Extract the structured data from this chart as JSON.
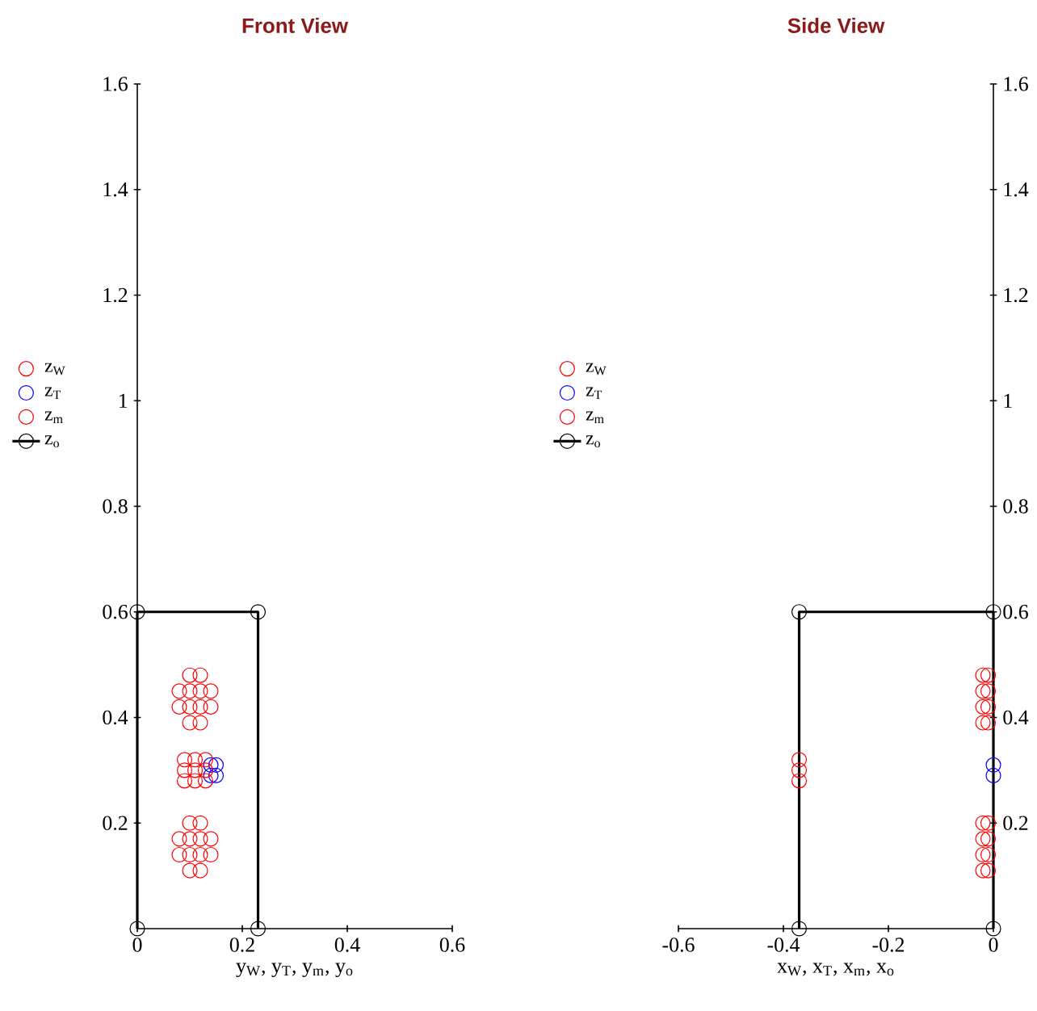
{
  "chart_data": [
    {
      "type": "scatter",
      "title": "Front View",
      "xlabel": "y$_{W}$, y$_{T}$, y$_{m}$, y$_{o}$",
      "xlim": [
        0,
        0.6
      ],
      "ylim": [
        0,
        1.6
      ],
      "xticks": [
        0,
        0.2,
        0.4,
        0.6
      ],
      "yticks": [
        0.2,
        0.4,
        0.6,
        0.8,
        1,
        1.2,
        1.4,
        1.6
      ],
      "legend": "left",
      "marker": "circle",
      "series": [
        {
          "name": "z$_{W}$",
          "color": "#ff0000",
          "x": [
            0.1,
            0.12,
            0.08,
            0.1,
            0.12,
            0.14,
            0.08,
            0.1,
            0.12,
            0.14,
            0.1,
            0.12,
            0.1,
            0.12,
            0.08,
            0.1,
            0.12,
            0.14,
            0.08,
            0.1,
            0.12,
            0.14,
            0.1,
            0.12
          ],
          "values": [
            0.39,
            0.39,
            0.42,
            0.42,
            0.42,
            0.42,
            0.45,
            0.45,
            0.45,
            0.45,
            0.48,
            0.48,
            0.11,
            0.11,
            0.14,
            0.14,
            0.14,
            0.14,
            0.17,
            0.17,
            0.17,
            0.17,
            0.2,
            0.2
          ]
        },
        {
          "name": "z$_{T}$",
          "color": "#0000ff",
          "x": [
            0.14,
            0.15,
            0.14,
            0.15
          ],
          "values": [
            0.29,
            0.29,
            0.31,
            0.31
          ]
        },
        {
          "name": "z$_{m}$",
          "color": "#ff0000",
          "x": [
            0.09,
            0.11,
            0.13,
            0.09,
            0.11,
            0.13,
            0.09,
            0.11,
            0.13
          ],
          "values": [
            0.28,
            0.28,
            0.28,
            0.3,
            0.3,
            0.3,
            0.32,
            0.32,
            0.32
          ]
        },
        {
          "name": "z$_{o}$",
          "type": "line",
          "line_style": "solid",
          "color": "#000000",
          "x": [
            0,
            0,
            0.23,
            0.23
          ],
          "values": [
            0,
            0.6,
            0.6,
            0
          ]
        }
      ]
    },
    {
      "type": "scatter",
      "title": "Side View",
      "xlabel": "x$_{W}$, x$_{T}$, x$_{m}$, x$_{o}$",
      "xlim": [
        -0.6,
        0
      ],
      "ylim": [
        0,
        1.6
      ],
      "xticks": [
        -0.6,
        -0.4,
        -0.2,
        0
      ],
      "yticks": [
        0.2,
        0.4,
        0.6,
        0.8,
        1,
        1.2,
        1.4,
        1.6
      ],
      "legend": "left",
      "marker": "circle",
      "series": [
        {
          "name": "z$_{W}$",
          "color": "#ff0000",
          "x": [
            -0.02,
            -0.01,
            -0.02,
            -0.01,
            -0.02,
            -0.01,
            -0.02,
            -0.01,
            -0.02,
            -0.01,
            -0.02,
            -0.01,
            -0.02,
            -0.01,
            -0.02,
            -0.01
          ],
          "values": [
            0.39,
            0.39,
            0.42,
            0.42,
            0.45,
            0.45,
            0.48,
            0.48,
            0.11,
            0.11,
            0.14,
            0.14,
            0.17,
            0.17,
            0.2,
            0.2
          ]
        },
        {
          "name": "z$_{T}$",
          "color": "#0000ff",
          "x": [
            0,
            0
          ],
          "values": [
            0.29,
            0.31
          ]
        },
        {
          "name": "z$_{m}$",
          "color": "#ff0000",
          "x": [
            -0.37,
            -0.37,
            -0.37
          ],
          "values": [
            0.28,
            0.3,
            0.32
          ]
        },
        {
          "name": "z$_{o}$",
          "type": "line",
          "line_style": "solid",
          "color": "#000000",
          "x": [
            -0.37,
            -0.37,
            0,
            0
          ],
          "values": [
            0,
            0.6,
            0.6,
            0
          ]
        }
      ]
    }
  ]
}
